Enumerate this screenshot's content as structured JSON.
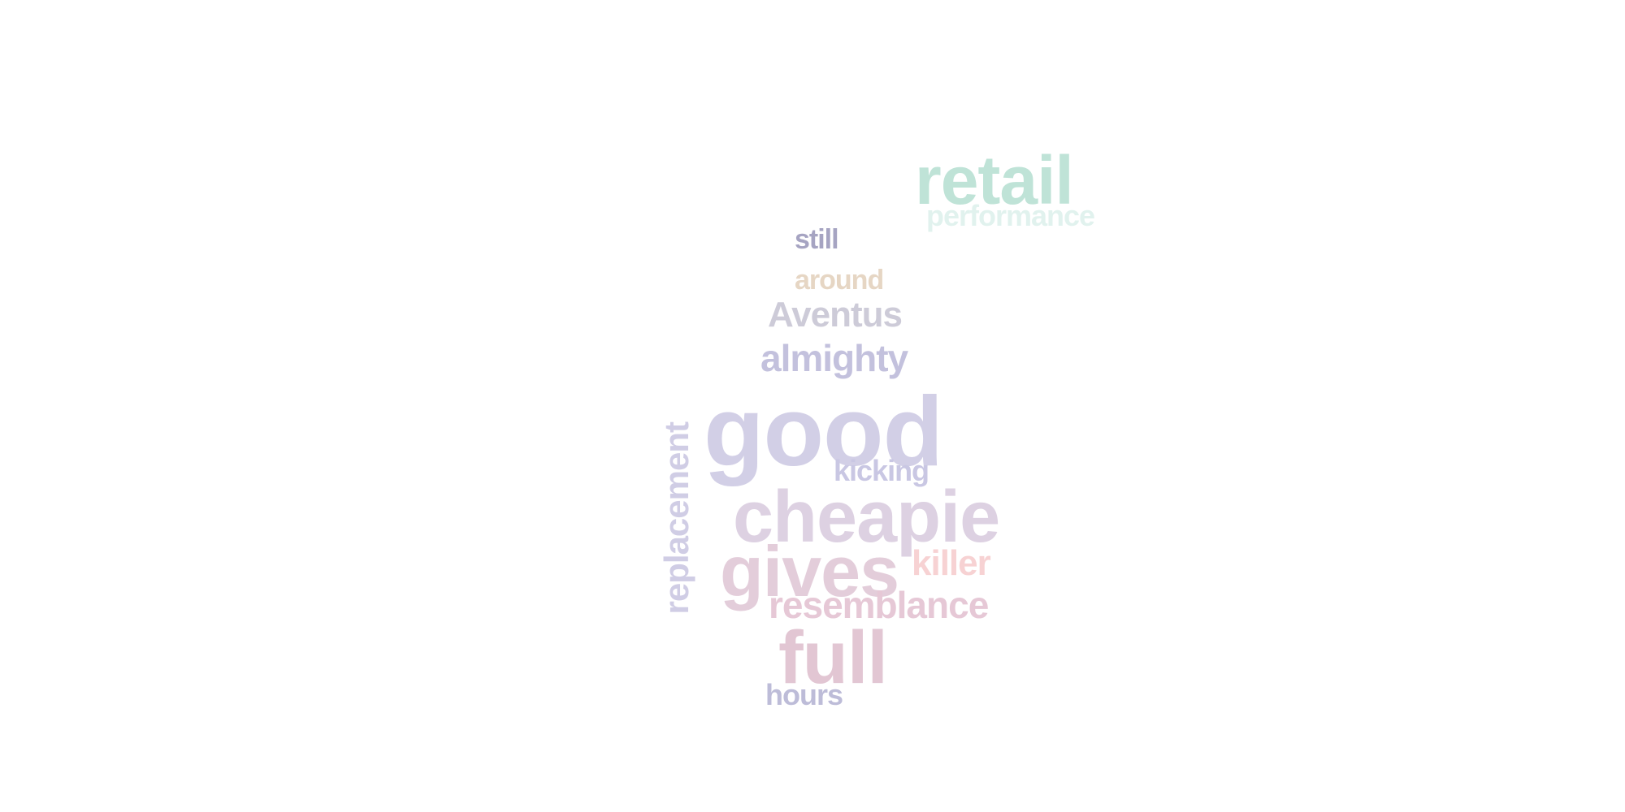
{
  "words": {
    "retail": {
      "text": "retail",
      "color": "#bfe3d7"
    },
    "performance": {
      "text": "performance",
      "color": "#e1f2ee"
    },
    "still": {
      "text": "still",
      "color": "#a6a4c2"
    },
    "around": {
      "text": "around",
      "color": "#e6d6c4"
    },
    "aventus": {
      "text": "Aventus",
      "color": "#cdcbd8"
    },
    "almighty": {
      "text": "almighty",
      "color": "#c3c1dd"
    },
    "good": {
      "text": "good",
      "color": "#d2cfe6"
    },
    "kicking": {
      "text": "kicking",
      "color": "#c9c7e3"
    },
    "replacement": {
      "text": "replacement",
      "color": "#d0cde5"
    },
    "cheapie": {
      "text": "cheapie",
      "color": "#ddd1e2"
    },
    "gives": {
      "text": "gives",
      "color": "#e3cdda"
    },
    "killer": {
      "text": "killer",
      "color": "#f7d2d3"
    },
    "resemblance": {
      "text": "resemblance",
      "color": "#e6c8d6"
    },
    "full": {
      "text": "full",
      "color": "#e2c6d3"
    },
    "hours": {
      "text": "hours",
      "color": "#bdbcd8"
    }
  }
}
